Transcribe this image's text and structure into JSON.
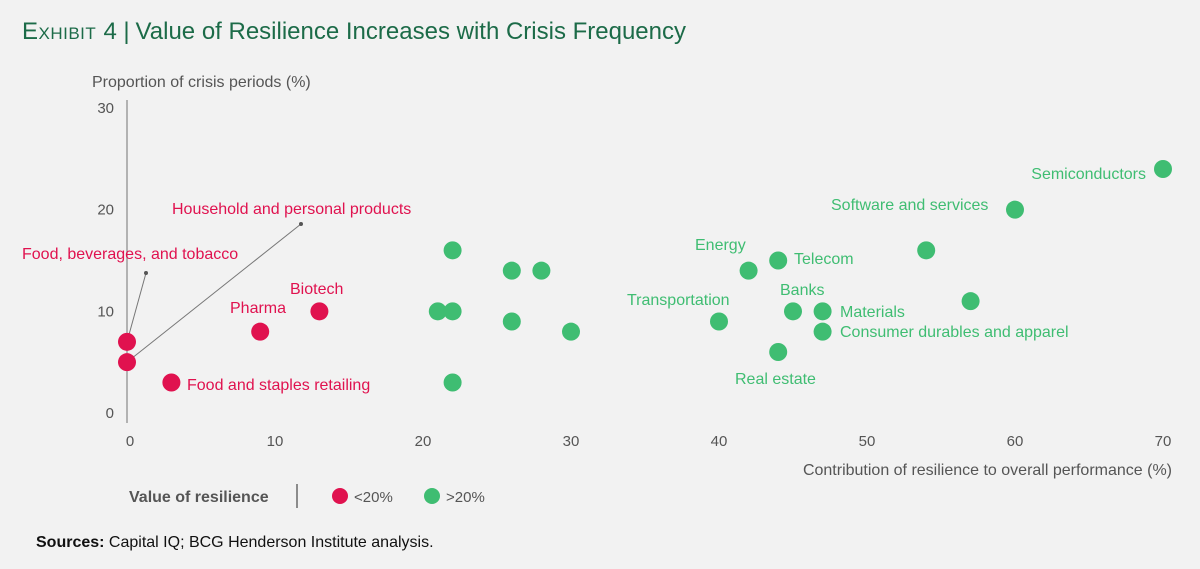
{
  "header": {
    "exhibit_label": "Exhibit 4",
    "title": "Value of Resilience Increases with Crisis Frequency"
  },
  "sources": {
    "label": "Sources:",
    "text": "Capital IQ; BCG Henderson Institute analysis."
  },
  "colors": {
    "low": "#e0124f",
    "high": "#3fbd72",
    "axis": "#888888",
    "text": "#555555",
    "title": "#1c6b48"
  },
  "chart_data": {
    "type": "scatter",
    "xlabel": "Contribution of resilience to overall performance (%)",
    "ylabel": "Proportion of crisis periods (%)",
    "xlim": [
      0,
      70
    ],
    "ylim": [
      0,
      30
    ],
    "xticks": [
      0,
      10,
      20,
      30,
      40,
      50,
      60,
      70
    ],
    "yticks": [
      0,
      10,
      20,
      30
    ],
    "legend": {
      "title": "Value of resilience",
      "items": [
        {
          "label": "<20%",
          "group": "low"
        },
        {
          "label": ">20%",
          "group": "high"
        }
      ]
    },
    "points": [
      {
        "x": 0,
        "y": 7,
        "group": "low",
        "label": "Food, beverages, and tobacco"
      },
      {
        "x": 0,
        "y": 5,
        "group": "low",
        "label": "Household and personal products"
      },
      {
        "x": 3,
        "y": 3,
        "group": "low",
        "label": "Food and staples retailing"
      },
      {
        "x": 9,
        "y": 8,
        "group": "low",
        "label": "Pharma"
      },
      {
        "x": 13,
        "y": 10,
        "group": "low",
        "label": "Biotech"
      },
      {
        "x": 21,
        "y": 10,
        "group": "high",
        "label": ""
      },
      {
        "x": 22,
        "y": 10,
        "group": "high",
        "label": ""
      },
      {
        "x": 22,
        "y": 16,
        "group": "high",
        "label": ""
      },
      {
        "x": 22,
        "y": 3,
        "group": "high",
        "label": ""
      },
      {
        "x": 26,
        "y": 14,
        "group": "high",
        "label": ""
      },
      {
        "x": 26,
        "y": 9,
        "group": "high",
        "label": ""
      },
      {
        "x": 28,
        "y": 14,
        "group": "high",
        "label": ""
      },
      {
        "x": 30,
        "y": 8,
        "group": "high",
        "label": ""
      },
      {
        "x": 40,
        "y": 9,
        "group": "high",
        "label": "Transportation"
      },
      {
        "x": 42,
        "y": 14,
        "group": "high",
        "label": "Energy"
      },
      {
        "x": 44,
        "y": 15,
        "group": "high",
        "label": "Telecom"
      },
      {
        "x": 44,
        "y": 6,
        "group": "high",
        "label": "Real estate"
      },
      {
        "x": 45,
        "y": 10,
        "group": "high",
        "label": "Banks"
      },
      {
        "x": 47,
        "y": 10,
        "group": "high",
        "label": "Materials"
      },
      {
        "x": 47,
        "y": 8,
        "group": "high",
        "label": "Consumer durables and apparel"
      },
      {
        "x": 54,
        "y": 16,
        "group": "high",
        "label": ""
      },
      {
        "x": 57,
        "y": 11,
        "group": "high",
        "label": ""
      },
      {
        "x": 60,
        "y": 20,
        "group": "high",
        "label": "Software and services"
      },
      {
        "x": 70,
        "y": 24,
        "group": "high",
        "label": "Semiconductors"
      }
    ]
  }
}
